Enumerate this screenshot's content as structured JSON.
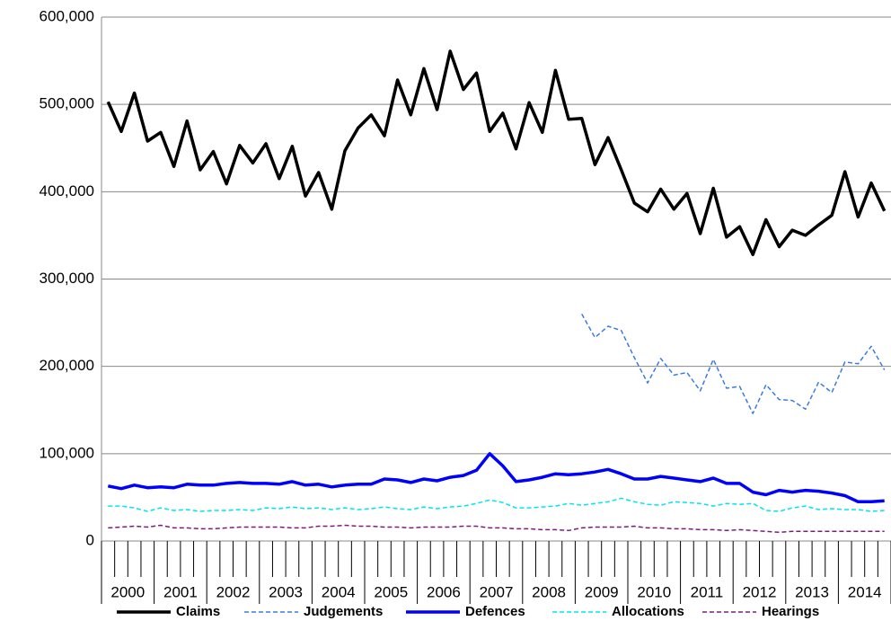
{
  "chart_data": {
    "type": "line",
    "categories": [
      "2000",
      null,
      null,
      null,
      "2001",
      null,
      null,
      null,
      "2002",
      null,
      null,
      null,
      "2003",
      null,
      null,
      null,
      "2004",
      null,
      null,
      null,
      "2005",
      null,
      null,
      null,
      "2006",
      null,
      null,
      null,
      "2007",
      null,
      null,
      null,
      "2008",
      null,
      null,
      null,
      "2009",
      null,
      null,
      null,
      "2010",
      null,
      null,
      null,
      "2011",
      null,
      null,
      null,
      "2012",
      null,
      null,
      null,
      "2013",
      null,
      null,
      null,
      "2014",
      null,
      null,
      null
    ],
    "ylim": [
      0,
      600000
    ],
    "yticks": [
      {
        "value": 0,
        "label": "0"
      },
      {
        "value": 100000,
        "label": "100,000"
      },
      {
        "value": 200000,
        "label": "200,000"
      },
      {
        "value": 300000,
        "label": "300,000"
      },
      {
        "value": 400000,
        "label": "400,000"
      },
      {
        "value": 500000,
        "label": "500,000"
      },
      {
        "value": 600000,
        "label": "600,000"
      }
    ],
    "grid": true,
    "legend": "bottom",
    "series": [
      {
        "name": "Claims",
        "color": "#000000",
        "style": "solid",
        "values": [
          503000,
          469000,
          513000,
          458000,
          468000,
          429000,
          481000,
          425000,
          446000,
          409000,
          453000,
          433000,
          455000,
          415000,
          452000,
          395000,
          422000,
          380000,
          447000,
          473000,
          488000,
          464000,
          528000,
          488000,
          541000,
          494000,
          561000,
          517000,
          536000,
          469000,
          490000,
          449000,
          502000,
          468000,
          539000,
          483000,
          484000,
          431000,
          462000,
          425000,
          387000,
          377000,
          403000,
          380000,
          398000,
          352000,
          404000,
          348000,
          360000,
          328000,
          368000,
          337000,
          356000,
          350000,
          362000,
          373000,
          423000,
          371000,
          410000,
          378000
        ]
      },
      {
        "name": "Judgements",
        "color": "#3a7ce0",
        "style": "dashed",
        "values": [
          null,
          null,
          null,
          null,
          null,
          null,
          null,
          null,
          null,
          null,
          null,
          null,
          null,
          null,
          null,
          null,
          null,
          null,
          null,
          null,
          null,
          null,
          null,
          null,
          null,
          null,
          null,
          null,
          null,
          null,
          null,
          null,
          null,
          null,
          null,
          null,
          260000,
          233000,
          246000,
          241000,
          210000,
          181000,
          209000,
          190000,
          193000,
          172000,
          208000,
          175000,
          177000,
          146000,
          179000,
          162000,
          161000,
          151000,
          182000,
          170000,
          205000,
          203000,
          223000,
          196000
        ]
      },
      {
        "name": "Defences",
        "color": "#0000ff",
        "style": "solid",
        "values": [
          63000,
          60000,
          64000,
          61000,
          62000,
          61000,
          65000,
          64000,
          64000,
          66000,
          67000,
          66000,
          66000,
          65000,
          68000,
          64000,
          65000,
          62000,
          64000,
          65000,
          65000,
          71000,
          70000,
          67000,
          71000,
          69000,
          73000,
          75000,
          81000,
          100000,
          86000,
          68000,
          70000,
          73000,
          77000,
          76000,
          77000,
          79000,
          82000,
          77000,
          71000,
          71000,
          74000,
          72000,
          70000,
          68000,
          72000,
          66000,
          66000,
          56000,
          53000,
          58000,
          56000,
          58000,
          57000,
          55000,
          52000,
          45000,
          45000,
          46000
        ]
      },
      {
        "name": "Allocations",
        "color": "#00e5ee",
        "style": "dashed",
        "values": [
          40000,
          40000,
          38000,
          34000,
          38000,
          35000,
          36000,
          34000,
          35000,
          35000,
          36000,
          35000,
          38000,
          37000,
          39000,
          37000,
          38000,
          36000,
          38000,
          36000,
          37000,
          39000,
          37000,
          36000,
          39000,
          37000,
          39000,
          40000,
          43000,
          47000,
          44000,
          38000,
          38000,
          39000,
          40000,
          43000,
          41000,
          43000,
          45000,
          49000,
          45000,
          42000,
          41000,
          45000,
          44000,
          43000,
          40000,
          43000,
          42000,
          43000,
          35000,
          34000,
          38000,
          40000,
          36000,
          37000,
          36000,
          36000,
          34000,
          35000
        ]
      },
      {
        "name": "Hearings",
        "color": "#7b1e7b",
        "style": "dashed",
        "values": [
          15000,
          16000,
          17000,
          16000,
          18000,
          15000,
          15000,
          14000,
          14000,
          15000,
          16000,
          16000,
          16000,
          16000,
          15000,
          15000,
          17000,
          17000,
          18000,
          17000,
          17000,
          16000,
          16000,
          15000,
          16000,
          16000,
          16000,
          17000,
          17000,
          15000,
          15000,
          14000,
          14000,
          13000,
          13000,
          12000,
          15000,
          16000,
          16000,
          16000,
          17000,
          15000,
          15000,
          14000,
          14000,
          13000,
          13000,
          12000,
          13000,
          12000,
          11000,
          10000,
          11000,
          11000,
          11000,
          11000,
          11000,
          11000,
          11000,
          11000
        ]
      }
    ]
  }
}
